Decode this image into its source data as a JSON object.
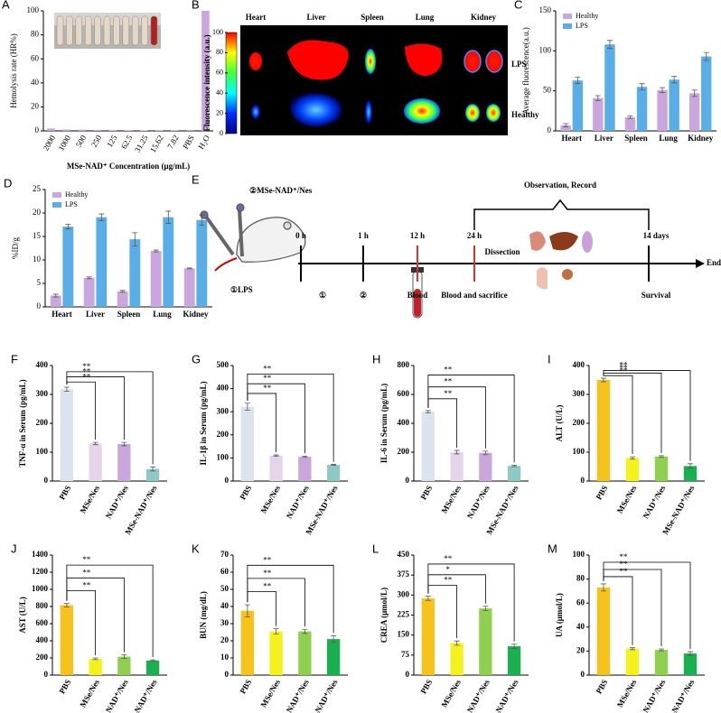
{
  "chart_data": [
    {
      "panel": "A",
      "type": "bar",
      "ylabel": "Hemolysis rate (HR%)",
      "xlabel": "MSe-NAD⁺ Concentration (μg/mL)",
      "categories": [
        "2000",
        "1000",
        "500",
        "250",
        "125",
        "62.5",
        "31.25",
        "15.62",
        "7.82",
        "PBS",
        "H₂O"
      ],
      "values": [
        2,
        1.2,
        1,
        0.8,
        0.6,
        0.5,
        0.4,
        0.3,
        0.3,
        0.2,
        100
      ],
      "color": "#c9a6dc",
      "ylim": [
        0,
        100
      ],
      "yticks": [
        0,
        20,
        40,
        60,
        80,
        100
      ]
    },
    {
      "panel": "B",
      "type": "image",
      "ylabel": "Fluorescence intensity (a.u.)",
      "clim": [
        0,
        100
      ],
      "cticks": [
        0,
        20,
        40,
        60,
        80,
        100
      ],
      "columns": [
        "Heart",
        "Liver",
        "Spleen",
        "Lung",
        "Kidney"
      ],
      "rows": [
        "LPS",
        "Healthy"
      ]
    },
    {
      "panel": "C",
      "type": "grouped-bar",
      "ylabel": "Average fluorescence(a.u.)",
      "categories": [
        "Heart",
        "Liver",
        "Spleen",
        "Lung",
        "Kidney"
      ],
      "series": [
        {
          "name": "Healthy",
          "color": "#c9a6dc",
          "values": [
            7,
            41,
            17,
            51,
            47
          ],
          "errors": [
            2,
            3,
            1.5,
            3,
            4
          ]
        },
        {
          "name": "LPS",
          "color": "#5aaee8",
          "values": [
            63,
            108,
            55,
            64,
            93
          ],
          "errors": [
            4,
            5,
            4,
            4,
            5
          ]
        }
      ],
      "ylim": [
        0,
        150
      ],
      "yticks": [
        0,
        50,
        100,
        150
      ],
      "legend": "top-left"
    },
    {
      "panel": "D",
      "type": "grouped-bar",
      "ylabel": "%ID/g",
      "categories": [
        "Heart",
        "Liver",
        "Spleen",
        "Lung",
        "Kidney"
      ],
      "series": [
        {
          "name": "Healthy",
          "color": "#c9a6dc",
          "values": [
            2.4,
            6.2,
            3.3,
            11.9,
            8.2
          ],
          "errors": [
            0.3,
            0.2,
            0.2,
            0.2,
            0.1
          ]
        },
        {
          "name": "LPS",
          "color": "#5aaee8",
          "values": [
            17.1,
            19.1,
            14.4,
            19.1,
            18.5
          ],
          "errors": [
            0.5,
            0.7,
            1.4,
            1.3,
            1.1
          ]
        }
      ],
      "ylim": [
        0,
        25
      ],
      "yticks": [
        0,
        5,
        10,
        15,
        20,
        25
      ],
      "legend": "top-left"
    },
    {
      "panel": "F",
      "type": "bar",
      "ylabel": "TNF-α in Serum (pg/mL)",
      "categories": [
        "PBS",
        "MSe/Nes",
        "NAD⁺/Nes",
        "MSe-NAD⁺/Nes"
      ],
      "values": [
        318,
        130,
        128,
        42
      ],
      "errors": [
        7,
        4,
        6,
        7
      ],
      "colors": [
        "#dbe3ef",
        "#e6d5ea",
        "#c9a6dc",
        "#8ec9c3"
      ],
      "ylim": [
        0,
        400
      ],
      "yticks": [
        0,
        100,
        200,
        300,
        400
      ],
      "significance": [
        "**",
        "**",
        "**"
      ]
    },
    {
      "panel": "G",
      "type": "bar",
      "ylabel": "IL-1β in Serum (pg/mL)",
      "categories": [
        "PBS",
        "MSe/Nes",
        "NAD⁺/Nes",
        "MSe-NAD⁺/Nes"
      ],
      "values": [
        322,
        110,
        105,
        70
      ],
      "errors": [
        15,
        3,
        3,
        2
      ],
      "colors": [
        "#dbe3ef",
        "#e6d5ea",
        "#c9a6dc",
        "#8ec9c3"
      ],
      "ylim": [
        0,
        500
      ],
      "yticks": [
        0,
        100,
        200,
        300,
        400,
        500
      ],
      "significance": [
        "**",
        "**",
        "**"
      ]
    },
    {
      "panel": "H",
      "type": "bar",
      "ylabel": "IL-6 in Serum (pg/mL)",
      "categories": [
        "PBS",
        "MSe/Nes",
        "NAD⁺/Nes",
        "MSe-NAD⁺/Nes"
      ],
      "values": [
        480,
        200,
        195,
        105
      ],
      "errors": [
        8,
        12,
        12,
        5
      ],
      "colors": [
        "#dbe3ef",
        "#e6d5ea",
        "#c9a6dc",
        "#8ec9c3"
      ],
      "ylim": [
        0,
        800
      ],
      "yticks": [
        0,
        200,
        400,
        600,
        800
      ],
      "significance": [
        "**",
        "**",
        "**"
      ]
    },
    {
      "panel": "I",
      "type": "bar",
      "ylabel": "ALT (U/L)",
      "categories": [
        "PBS",
        "MSe/Nes",
        "NAD⁺/Nes",
        "MSe-NAD⁺/Nes"
      ],
      "values": [
        350,
        80,
        85,
        52
      ],
      "errors": [
        6,
        4,
        3,
        8
      ],
      "colors": [
        "#f7c21a",
        "#f4f21a",
        "#8fd14f",
        "#1bb04f"
      ],
      "ylim": [
        0,
        400
      ],
      "yticks": [
        0,
        100,
        200,
        300,
        400
      ],
      "significance": [
        "**",
        "**",
        "**"
      ]
    },
    {
      "panel": "J",
      "type": "bar",
      "ylabel": "AST (U/L)",
      "categories": [
        "PBS",
        "MSe/Nes",
        "NAD⁺/Nes",
        "MSe-NAD⁺/Nes"
      ],
      "values": [
        815,
        190,
        215,
        170
      ],
      "errors": [
        20,
        10,
        20,
        8
      ],
      "colors": [
        "#f7c21a",
        "#f4f21a",
        "#8fd14f",
        "#1bb04f"
      ],
      "ylim": [
        0,
        1400
      ],
      "yticks": [
        0,
        200,
        400,
        600,
        800,
        1000,
        1200,
        1400
      ],
      "significance": [
        "**",
        "**",
        "**"
      ]
    },
    {
      "panel": "K",
      "type": "bar",
      "ylabel": "BUN (mg/dL)",
      "categories": [
        "PBS",
        "MSe/Nes",
        "NAD⁺/Nes",
        "MSe-NAD⁺/Nes"
      ],
      "values": [
        37.5,
        25.5,
        25.5,
        21
      ],
      "errors": [
        3.5,
        1.5,
        1.2,
        2
      ],
      "colors": [
        "#f7c21a",
        "#f4f21a",
        "#8fd14f",
        "#1bb04f"
      ],
      "ylim": [
        0,
        70
      ],
      "yticks": [
        0,
        10,
        20,
        30,
        40,
        50,
        60,
        70
      ],
      "significance": [
        "**",
        "**",
        "**"
      ]
    },
    {
      "panel": "L",
      "type": "bar",
      "ylabel": "CREA (μmol/L)",
      "categories": [
        "PBS",
        "MSe/Nes",
        "NAD⁺/Nes",
        "MSe-NAD⁺/Nes"
      ],
      "values": [
        288,
        120,
        250,
        108
      ],
      "errors": [
        8,
        8,
        8,
        8
      ],
      "colors": [
        "#f7c21a",
        "#f4f21a",
        "#8fd14f",
        "#1bb04f"
      ],
      "ylim": [
        0,
        450
      ],
      "yticks": [
        0,
        75,
        150,
        225,
        300,
        375,
        450
      ],
      "significance": [
        "**",
        "*",
        "**"
      ]
    },
    {
      "panel": "M",
      "type": "bar",
      "ylabel": "UA (μmol/L)",
      "categories": [
        "PBS",
        "MSe/Nes",
        "NAD⁺/Nes",
        "MSe-NAD⁺/Nes"
      ],
      "values": [
        73,
        22,
        21,
        18
      ],
      "errors": [
        3,
        0.8,
        0.8,
        1.5
      ],
      "colors": [
        "#f7c21a",
        "#f4f21a",
        "#8fd14f",
        "#1bb04f"
      ],
      "ylim": [
        0,
        100
      ],
      "yticks": [
        0,
        20,
        40,
        60,
        80,
        100
      ],
      "significance": [
        "**",
        "**",
        "**"
      ]
    }
  ],
  "panel_e": {
    "panel": "E",
    "dose_label": "②MSe-NAD⁺/Nes",
    "inject_label": "①LPS",
    "bracket_label": "Observation, Record",
    "times": [
      "0 h",
      "1 h",
      "12 h",
      "24 h",
      "14 days"
    ],
    "events": [
      "①",
      "②",
      "Blood",
      "Blood and sacrifice",
      "Survival"
    ],
    "dissection": "Dissection",
    "end": "End"
  }
}
